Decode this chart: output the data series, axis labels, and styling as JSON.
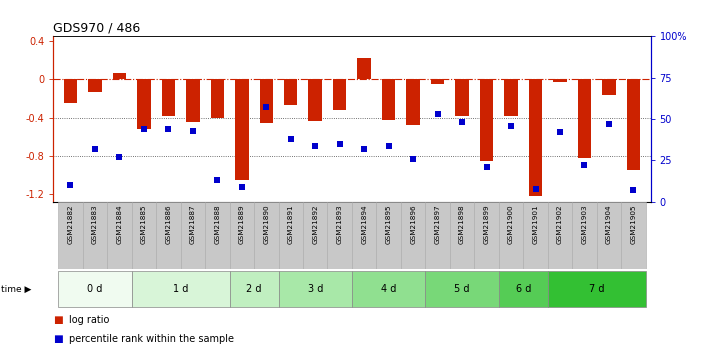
{
  "title": "GDS970 / 486",
  "samples": [
    "GSM21882",
    "GSM21883",
    "GSM21884",
    "GSM21885",
    "GSM21886",
    "GSM21887",
    "GSM21888",
    "GSM21889",
    "GSM21890",
    "GSM21891",
    "GSM21892",
    "GSM21893",
    "GSM21894",
    "GSM21895",
    "GSM21896",
    "GSM21897",
    "GSM21898",
    "GSM21899",
    "GSM21900",
    "GSM21901",
    "GSM21902",
    "GSM21903",
    "GSM21904",
    "GSM21905"
  ],
  "log_ratio": [
    -0.25,
    -0.13,
    0.07,
    -0.52,
    -0.38,
    -0.45,
    -0.4,
    -1.05,
    -0.46,
    -0.27,
    -0.44,
    -0.32,
    0.22,
    -0.42,
    -0.48,
    -0.05,
    -0.38,
    -0.85,
    -0.38,
    -1.22,
    -0.03,
    -0.82,
    -0.16,
    -0.95
  ],
  "percentile": [
    10,
    32,
    27,
    44,
    44,
    43,
    13,
    9,
    57,
    38,
    34,
    35,
    32,
    34,
    26,
    53,
    48,
    21,
    46,
    8,
    42,
    22,
    47,
    7
  ],
  "group_defs": [
    {
      "label": "0 d",
      "indices": [
        0,
        1,
        2
      ],
      "color": "#f0fbf0"
    },
    {
      "label": "1 d",
      "indices": [
        3,
        4,
        5,
        6
      ],
      "color": "#d8f5d8"
    },
    {
      "label": "2 d",
      "indices": [
        7,
        8
      ],
      "color": "#c0efc0"
    },
    {
      "label": "3 d",
      "indices": [
        9,
        10,
        11
      ],
      "color": "#a8e8a8"
    },
    {
      "label": "4 d",
      "indices": [
        12,
        13,
        14
      ],
      "color": "#90e090"
    },
    {
      "label": "5 d",
      "indices": [
        15,
        16,
        17
      ],
      "color": "#78d878"
    },
    {
      "label": "6 d",
      "indices": [
        18,
        19
      ],
      "color": "#55cc55"
    },
    {
      "label": "7 d",
      "indices": [
        20,
        21,
        22,
        23
      ],
      "color": "#33c033"
    }
  ],
  "ylim_left": [
    -1.28,
    0.45
  ],
  "ylim_right": [
    0,
    100
  ],
  "left_yticks": [
    0.4,
    0.0,
    -0.4,
    -0.8,
    -1.2
  ],
  "left_yticklabels": [
    "0.4",
    "0",
    "-0.4",
    "-0.8",
    "-1.2"
  ],
  "right_yticks": [
    0,
    25,
    50,
    75,
    100
  ],
  "right_yticklabels": [
    "0",
    "25",
    "50",
    "75",
    "100%"
  ],
  "bar_color": "#cc2200",
  "scatter_color": "#0000cc",
  "hline_color": "#cc2200",
  "dotted_color": "#444444",
  "label_bg_color": "#c8c8c8",
  "label_edge_color": "#aaaaaa"
}
